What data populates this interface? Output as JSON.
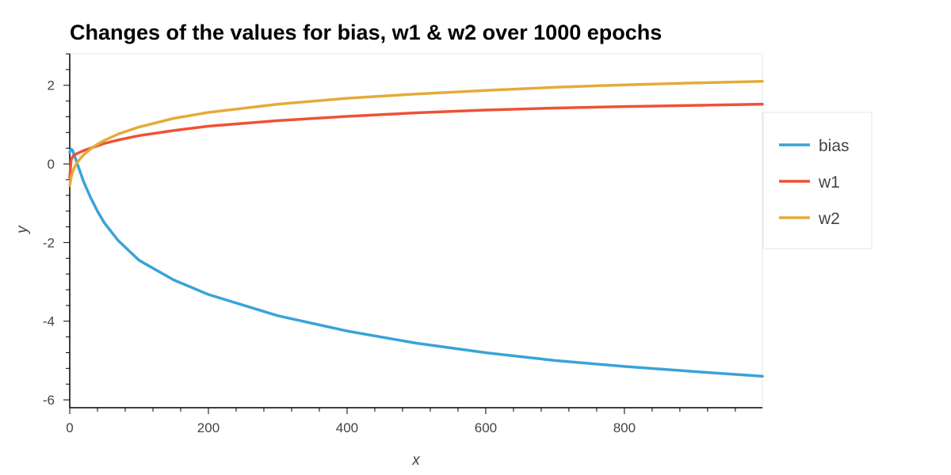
{
  "chart_data": {
    "type": "line",
    "title": "Changes of the values for bias, w1 & w2 over 1000 epochs",
    "xlabel": "x",
    "ylabel": "y",
    "xlim": [
      0,
      999
    ],
    "ylim": [
      -6.2,
      2.8
    ],
    "x_ticks": [
      0,
      200,
      400,
      600,
      800
    ],
    "y_ticks": [
      -6,
      -4,
      -2,
      0,
      2
    ],
    "grid": false,
    "legend_position": "right",
    "x": [
      0,
      2,
      4,
      6,
      8,
      10,
      15,
      20,
      30,
      40,
      50,
      70,
      100,
      150,
      200,
      300,
      400,
      500,
      600,
      700,
      800,
      900,
      999
    ],
    "series": [
      {
        "name": "bias",
        "color": "#3aa3d8",
        "values": [
          0.3,
          0.38,
          0.35,
          0.25,
          0.15,
          0.05,
          -0.2,
          -0.45,
          -0.85,
          -1.2,
          -1.5,
          -1.95,
          -2.45,
          -2.95,
          -3.32,
          -3.86,
          -4.25,
          -4.56,
          -4.8,
          -5.0,
          -5.15,
          -5.28,
          -5.4
        ]
      },
      {
        "name": "w1",
        "color": "#ef5136",
        "values": [
          -0.35,
          0.1,
          0.18,
          0.22,
          0.24,
          0.26,
          0.3,
          0.34,
          0.4,
          0.46,
          0.52,
          0.61,
          0.72,
          0.85,
          0.96,
          1.1,
          1.21,
          1.3,
          1.37,
          1.42,
          1.46,
          1.49,
          1.52
        ]
      },
      {
        "name": "w2",
        "color": "#e4ab3a",
        "values": [
          -0.55,
          -0.35,
          -0.22,
          -0.12,
          -0.05,
          0.02,
          0.13,
          0.23,
          0.38,
          0.5,
          0.6,
          0.76,
          0.94,
          1.16,
          1.31,
          1.52,
          1.67,
          1.78,
          1.87,
          1.95,
          2.01,
          2.06,
          2.1
        ]
      }
    ]
  }
}
